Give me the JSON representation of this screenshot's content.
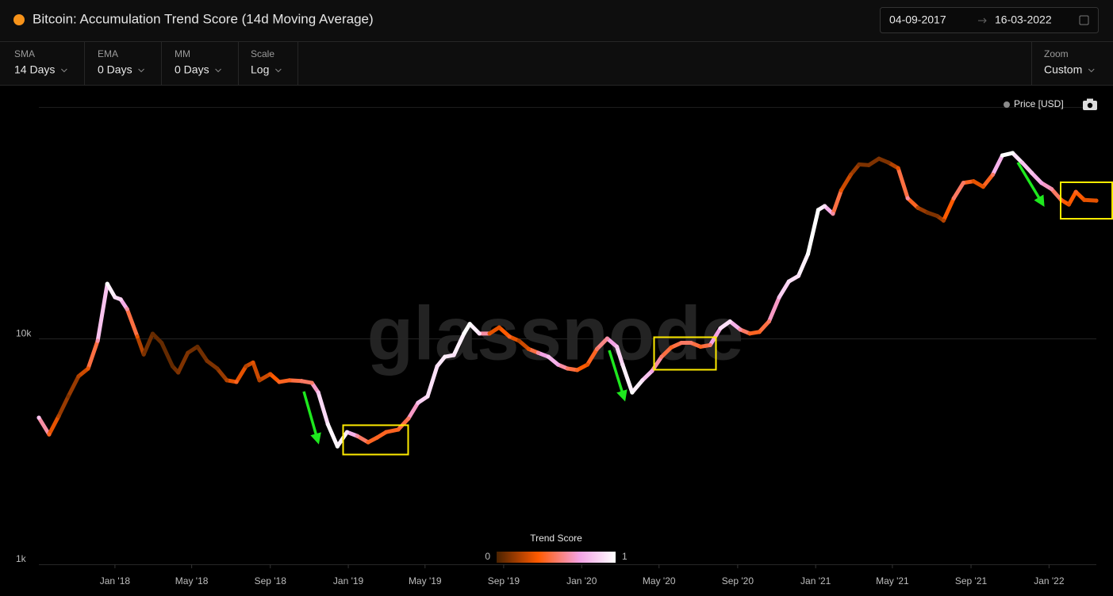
{
  "header": {
    "title": "Bitcoin: Accumulation Trend Score (14d Moving Average)",
    "date_from": "04-09-2017",
    "date_to": "16-03-2022"
  },
  "controls": [
    {
      "label": "SMA",
      "value": "14 Days"
    },
    {
      "label": "EMA",
      "value": "0 Days"
    },
    {
      "label": "MM",
      "value": "0 Days"
    },
    {
      "label": "Scale",
      "value": "Log"
    },
    {
      "label": "Zoom",
      "value": "Custom"
    }
  ],
  "chart_data": {
    "type": "line",
    "watermark": "glassnode",
    "log_y": true,
    "grid": true,
    "x": [
      "2017-09-04",
      "2017-09-20",
      "2017-10-05",
      "2017-10-20",
      "2017-11-05",
      "2017-11-20",
      "2017-12-05",
      "2017-12-20",
      "2018-01-01",
      "2018-01-10",
      "2018-01-20",
      "2018-02-05",
      "2018-02-15",
      "2018-03-01",
      "2018-03-15",
      "2018-04-01",
      "2018-04-10",
      "2018-04-25",
      "2018-05-10",
      "2018-05-25",
      "2018-06-10",
      "2018-06-25",
      "2018-07-10",
      "2018-07-25",
      "2018-08-05",
      "2018-08-15",
      "2018-09-01",
      "2018-09-15",
      "2018-10-01",
      "2018-10-20",
      "2018-11-05",
      "2018-11-15",
      "2018-11-30",
      "2018-12-15",
      "2018-12-30",
      "2019-01-15",
      "2019-02-01",
      "2019-02-15",
      "2019-03-01",
      "2019-03-20",
      "2019-04-05",
      "2019-04-20",
      "2019-05-05",
      "2019-05-20",
      "2019-06-01",
      "2019-06-15",
      "2019-07-01",
      "2019-07-10",
      "2019-07-25",
      "2019-08-10",
      "2019-08-25",
      "2019-09-10",
      "2019-09-25",
      "2019-10-10",
      "2019-10-25",
      "2019-11-10",
      "2019-11-25",
      "2019-12-10",
      "2019-12-25",
      "2020-01-10",
      "2020-01-25",
      "2020-02-10",
      "2020-02-25",
      "2020-03-05",
      "2020-03-20",
      "2020-04-05",
      "2020-04-20",
      "2020-05-05",
      "2020-05-20",
      "2020-06-05",
      "2020-06-20",
      "2020-07-05",
      "2020-07-20",
      "2020-08-05",
      "2020-08-20",
      "2020-09-05",
      "2020-09-20",
      "2020-10-05",
      "2020-10-20",
      "2020-11-05",
      "2020-11-20",
      "2020-12-05",
      "2020-12-20",
      "2021-01-05",
      "2021-01-15",
      "2021-01-28",
      "2021-02-10",
      "2021-02-25",
      "2021-03-10",
      "2021-03-25",
      "2021-04-10",
      "2021-04-25",
      "2021-05-10",
      "2021-05-25",
      "2021-06-10",
      "2021-06-25",
      "2021-07-10",
      "2021-07-20",
      "2021-08-05",
      "2021-08-20",
      "2021-09-05",
      "2021-09-20",
      "2021-10-05",
      "2021-10-20",
      "2021-11-05",
      "2021-11-20",
      "2021-12-05",
      "2021-12-20",
      "2022-01-05",
      "2022-01-20",
      "2022-02-01",
      "2022-02-12",
      "2022-02-25",
      "2022-03-16"
    ],
    "series": [
      {
        "name": "Price [USD]",
        "color": "#8a8a8a",
        "values": [
          4460,
          3760,
          4530,
          5540,
          6800,
          7360,
          9770,
          17460,
          15230,
          14900,
          13500,
          10200,
          8500,
          10500,
          9570,
          7540,
          7070,
          8640,
          9200,
          7960,
          7360,
          6530,
          6420,
          7540,
          7830,
          6530,
          6960,
          6420,
          6530,
          6480,
          6360,
          5770,
          4170,
          3330,
          3850,
          3700,
          3470,
          3640,
          3850,
          3950,
          4420,
          5190,
          5540,
          7540,
          8300,
          8440,
          10520,
          11600,
          10520,
          10520,
          11200,
          10200,
          9770,
          8990,
          8640,
          8300,
          7660,
          7360,
          7250,
          7660,
          8990,
          10000,
          9200,
          7660,
          5770,
          6530,
          7180,
          8300,
          9130,
          9570,
          9570,
          9200,
          9350,
          11100,
          11900,
          10960,
          10520,
          10700,
          11900,
          15230,
          17880,
          18920,
          23700,
          37100,
          38600,
          35700,
          45300,
          53200,
          59000,
          58600,
          62600,
          60100,
          56800,
          41800,
          37900,
          36100,
          34900,
          33300,
          41800,
          48900,
          49700,
          47000,
          53200,
          64700,
          66300,
          60100,
          54100,
          48900,
          45900,
          41100,
          39200,
          44600,
          41100,
          40800
        ]
      }
    ],
    "trend_score": {
      "title": "Trend Score",
      "ticks": [
        0,
        1
      ],
      "colorscale": [
        [
          0,
          "#4a2200"
        ],
        [
          0.35,
          "#ff5a00"
        ],
        [
          0.7,
          "#f4a3e6"
        ],
        [
          1,
          "#ffffff"
        ]
      ],
      "values": [
        0.8,
        0.4,
        0.2,
        0.1,
        0.2,
        0.3,
        0.6,
        1,
        0.9,
        0.85,
        0.6,
        0.3,
        0.1,
        0.05,
        0.05,
        0.05,
        0.1,
        0.1,
        0.05,
        0.1,
        0.1,
        0.2,
        0.4,
        0.2,
        0.3,
        0.2,
        0.3,
        0.4,
        0.4,
        0.5,
        0.5,
        0.8,
        0.95,
        1,
        0.9,
        0.6,
        0.4,
        0.4,
        0.4,
        0.4,
        0.5,
        0.8,
        0.9,
        0.9,
        0.95,
        0.9,
        1,
        1,
        0.9,
        0.3,
        0.3,
        0.4,
        0.2,
        0.3,
        0.6,
        0.8,
        0.7,
        0.5,
        0.4,
        0.3,
        0.5,
        0.6,
        0.8,
        0.9,
        1,
        0.9,
        0.7,
        0.5,
        0.4,
        0.5,
        0.5,
        0.4,
        0.5,
        0.9,
        0.9,
        0.6,
        0.4,
        0.4,
        0.5,
        0.8,
        0.9,
        0.9,
        1,
        1,
        0.9,
        0.6,
        0.3,
        0.2,
        0.1,
        0.1,
        0.1,
        0.1,
        0.3,
        0.6,
        0.2,
        0.1,
        0.1,
        0.2,
        0.5,
        0.5,
        0.3,
        0.3,
        0.5,
        1,
        1,
        0.8,
        0.8,
        0.7,
        0.6,
        0.4,
        0.3,
        0.4,
        0.3,
        0.3
      ]
    },
    "xlim": [
      "2017-09-04",
      "2022-03-16"
    ],
    "xticks": [
      {
        "value": "2018-01-01",
        "label": "Jan '18"
      },
      {
        "value": "2018-05-01",
        "label": "May '18"
      },
      {
        "value": "2018-09-01",
        "label": "Sep '18"
      },
      {
        "value": "2019-01-01",
        "label": "Jan '19"
      },
      {
        "value": "2019-05-01",
        "label": "May '19"
      },
      {
        "value": "2019-09-01",
        "label": "Sep '19"
      },
      {
        "value": "2020-01-01",
        "label": "Jan '20"
      },
      {
        "value": "2020-05-01",
        "label": "May '20"
      },
      {
        "value": "2020-09-01",
        "label": "Sep '20"
      },
      {
        "value": "2021-01-01",
        "label": "Jan '21"
      },
      {
        "value": "2021-05-01",
        "label": "May '21"
      },
      {
        "value": "2021-09-01",
        "label": "Sep '21"
      },
      {
        "value": "2022-01-01",
        "label": "Jan '22"
      }
    ],
    "ylim": [
      1000,
      106000
    ],
    "yticks": [
      {
        "value": 1000,
        "label": "1k"
      },
      {
        "value": 10000,
        "label": "10k"
      }
    ]
  }
}
